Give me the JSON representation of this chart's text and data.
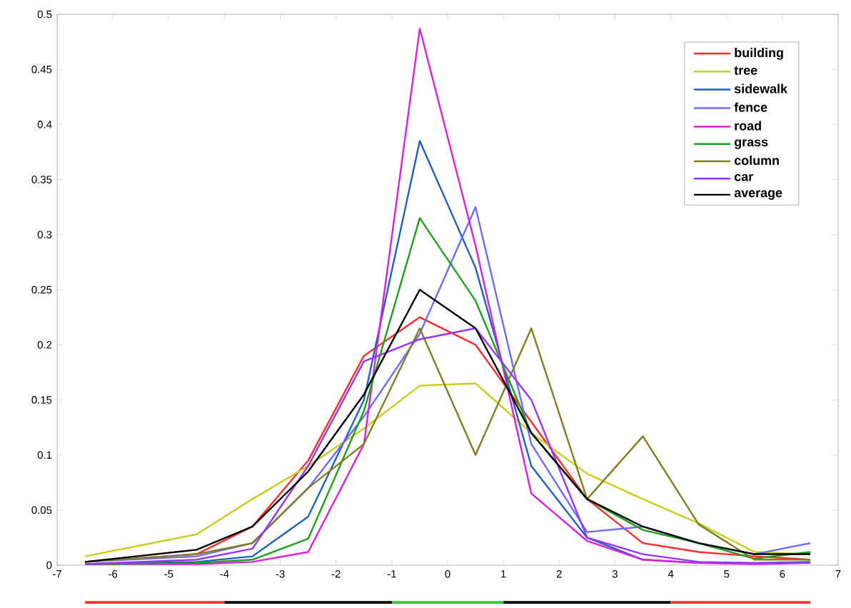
{
  "chart_data": {
    "type": "line",
    "x": [
      -6.5,
      -4.5,
      -3.5,
      -2.5,
      -1.5,
      -0.5,
      0.5,
      1.5,
      2.5,
      3.5,
      4.5,
      5.5,
      6.5
    ],
    "series": [
      {
        "name": "building",
        "color": "#ff2a2a",
        "values": [
          0.003,
          0.01,
          0.035,
          0.095,
          0.19,
          0.225,
          0.2,
          0.13,
          0.06,
          0.02,
          0.012,
          0.008,
          0.005
        ]
      },
      {
        "name": "tree",
        "color": "#cccc1a",
        "values": [
          0.008,
          0.028,
          0.06,
          0.09,
          0.124,
          0.163,
          0.165,
          0.12,
          0.083,
          0.06,
          0.038,
          0.012,
          0.01
        ]
      },
      {
        "name": "sidewalk",
        "color": "#1f5fbf",
        "values": [
          0.001,
          0.003,
          0.008,
          0.044,
          0.15,
          0.385,
          0.27,
          0.09,
          0.025,
          0.005,
          0.002,
          0.002,
          0.003
        ]
      },
      {
        "name": "fence",
        "color": "#6b6bff",
        "values": [
          0.003,
          0.008,
          0.02,
          0.07,
          0.135,
          0.21,
          0.325,
          0.11,
          0.03,
          0.035,
          0.02,
          0.01,
          0.02
        ]
      },
      {
        "name": "road",
        "color": "#dd1fdd",
        "values": [
          0.001,
          0.001,
          0.003,
          0.012,
          0.11,
          0.487,
          0.29,
          0.065,
          0.022,
          0.005,
          0.002,
          0.001,
          0.002
        ]
      },
      {
        "name": "grass",
        "color": "#1f9f1f",
        "values": [
          0.001,
          0.002,
          0.005,
          0.024,
          0.14,
          0.315,
          0.24,
          0.12,
          0.06,
          0.032,
          0.02,
          0.006,
          0.012
        ]
      },
      {
        "name": "column",
        "color": "#7f7f1f",
        "values": [
          0.003,
          0.01,
          0.02,
          0.07,
          0.11,
          0.215,
          0.1,
          0.215,
          0.06,
          0.117,
          0.037,
          0.005,
          0.005
        ]
      },
      {
        "name": "car",
        "color": "#9933ff",
        "values": [
          0.001,
          0.005,
          0.015,
          0.09,
          0.185,
          0.205,
          0.215,
          0.15,
          0.025,
          0.01,
          0.003,
          0.002,
          0.002
        ]
      },
      {
        "name": "average",
        "color": "#000000",
        "values": [
          0.003,
          0.014,
          0.035,
          0.085,
          0.155,
          0.25,
          0.215,
          0.12,
          0.06,
          0.035,
          0.02,
          0.01,
          0.01
        ]
      }
    ],
    "xlim": [
      -7,
      7
    ],
    "ylim": [
      0,
      0.5
    ],
    "xticks": [
      -7,
      -6,
      -5,
      -4,
      -3,
      -2,
      -1,
      0,
      1,
      2,
      3,
      4,
      5,
      6,
      7
    ],
    "yticks": [
      0,
      0.05,
      0.1,
      0.15,
      0.2,
      0.25,
      0.3,
      0.35,
      0.4,
      0.45,
      0.5
    ],
    "grid": false,
    "legend": "top right",
    "marker": "none",
    "line_style": "solid"
  }
}
